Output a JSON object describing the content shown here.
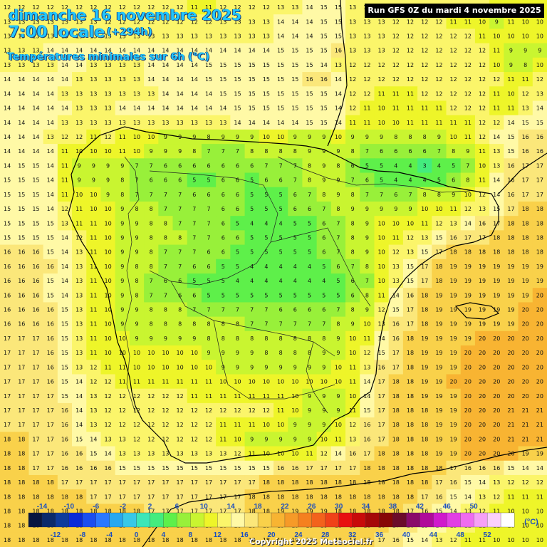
{
  "header": {
    "date_line": "dimanche 16 novembre 2025",
    "time_line": "7:00 locale",
    "offset": "(+294h)",
    "subtitle": "Températures minimales sur 6h (°C)"
  },
  "run_info": "Run GFS 0Z du mardi 4 novembre 2025",
  "copyright": "Copyright 2025 Meteociel.fr",
  "legend": {
    "unit_label": "(°C)",
    "values_top": [
      -14,
      -10,
      -6,
      -2,
      2,
      6,
      10,
      14,
      18,
      22,
      26,
      30,
      34,
      38,
      42,
      46,
      50
    ],
    "values_bottom": [
      -12,
      -8,
      -4,
      0,
      4,
      8,
      12,
      16,
      20,
      24,
      28,
      32,
      36,
      40,
      44,
      48,
      52
    ],
    "colors": [
      "#061540",
      "#0a2a6b",
      "#0d3b9c",
      "#0a2ad8",
      "#1a4ef0",
      "#2a78ff",
      "#27a8f0",
      "#38c8e8",
      "#3de6b8",
      "#43ec7e",
      "#5ef04a",
      "#98f03a",
      "#c9f530",
      "#eef529",
      "#fbf56a",
      "#fff9a6",
      "#fbe77a",
      "#f9d14a",
      "#f8b432",
      "#f69a28",
      "#f5801f",
      "#f3621c",
      "#f04218",
      "#e81010",
      "#c80a0a",
      "#a50808",
      "#870606",
      "#6b0b2a",
      "#8a0a6a",
      "#b00a9a",
      "#d01acc",
      "#e23ee4",
      "#ef6cf0",
      "#f6a0f6",
      "#fbd0fb",
      "#ffffff"
    ]
  },
  "temperature_grid": [
    [
      12,
      12,
      12,
      12,
      12,
      12,
      12,
      12,
      12,
      12,
      12,
      12,
      12,
      11,
      11,
      12,
      12,
      12,
      12,
      13,
      13,
      14,
      15,
      15,
      13,
      13,
      13,
      12,
      13,
      13,
      13,
      12,
      12,
      12,
      11,
      11,
      11,
      11
    ],
    [
      13,
      13,
      13,
      13,
      13,
      13,
      13,
      12,
      12,
      12,
      12,
      12,
      12,
      12,
      12,
      13,
      13,
      13,
      13,
      14,
      14,
      14,
      15,
      15,
      13,
      13,
      13,
      12,
      12,
      12,
      12,
      11,
      11,
      10,
      9,
      11,
      10,
      10
    ],
    [
      13,
      13,
      13,
      13,
      13,
      13,
      13,
      13,
      13,
      13,
      13,
      13,
      13,
      13,
      13,
      13,
      13,
      13,
      13,
      14,
      14,
      14,
      15,
      15,
      13,
      13,
      13,
      12,
      12,
      12,
      12,
      12,
      12,
      11,
      10,
      10,
      10,
      10
    ],
    [
      13,
      13,
      13,
      14,
      14,
      14,
      14,
      14,
      14,
      14,
      14,
      14,
      14,
      14,
      14,
      14,
      14,
      14,
      14,
      15,
      15,
      15,
      15,
      16,
      13,
      13,
      13,
      12,
      12,
      12,
      12,
      12,
      12,
      12,
      11,
      9,
      9,
      9
    ],
    [
      13,
      13,
      13,
      13,
      14,
      14,
      13,
      13,
      13,
      13,
      14,
      14,
      14,
      14,
      15,
      15,
      15,
      15,
      15,
      15,
      15,
      15,
      14,
      13,
      12,
      12,
      12,
      12,
      12,
      12,
      12,
      12,
      12,
      12,
      10,
      9,
      8,
      10
    ],
    [
      14,
      14,
      14,
      14,
      14,
      13,
      13,
      13,
      13,
      13,
      14,
      14,
      14,
      14,
      15,
      15,
      15,
      15,
      15,
      15,
      15,
      16,
      16,
      14,
      12,
      12,
      12,
      12,
      12,
      12,
      12,
      12,
      12,
      12,
      12,
      11,
      11,
      12
    ],
    [
      14,
      14,
      14,
      14,
      13,
      13,
      13,
      13,
      13,
      13,
      13,
      14,
      14,
      14,
      14,
      15,
      15,
      15,
      15,
      15,
      15,
      15,
      15,
      14,
      12,
      12,
      11,
      11,
      11,
      12,
      12,
      12,
      12,
      12,
      11,
      10,
      12,
      13
    ],
    [
      14,
      14,
      14,
      14,
      14,
      13,
      13,
      13,
      14,
      14,
      14,
      14,
      14,
      14,
      14,
      14,
      15,
      15,
      15,
      15,
      15,
      15,
      15,
      14,
      12,
      11,
      10,
      11,
      11,
      11,
      11,
      12,
      12,
      12,
      11,
      11,
      13,
      14
    ],
    [
      14,
      14,
      14,
      14,
      13,
      13,
      13,
      13,
      13,
      13,
      13,
      13,
      13,
      13,
      13,
      13,
      14,
      14,
      14,
      14,
      14,
      15,
      15,
      14,
      11,
      11,
      10,
      10,
      11,
      11,
      11,
      11,
      11,
      12,
      12,
      14,
      15,
      15
    ],
    [
      14,
      14,
      14,
      13,
      12,
      12,
      11,
      12,
      11,
      10,
      10,
      9,
      9,
      9,
      8,
      9,
      9,
      9,
      10,
      10,
      9,
      9,
      9,
      10,
      9,
      9,
      9,
      8,
      8,
      8,
      9,
      10,
      11,
      12,
      14,
      15,
      16,
      16
    ],
    [
      14,
      14,
      14,
      14,
      11,
      10,
      10,
      10,
      11,
      10,
      9,
      9,
      9,
      8,
      7,
      7,
      7,
      8,
      8,
      8,
      8,
      9,
      9,
      9,
      8,
      7,
      6,
      6,
      6,
      6,
      7,
      8,
      9,
      11,
      13,
      15,
      16,
      16
    ],
    [
      14,
      15,
      15,
      14,
      11,
      9,
      9,
      9,
      9,
      7,
      7,
      6,
      6,
      6,
      6,
      6,
      6,
      6,
      7,
      7,
      7,
      8,
      9,
      8,
      6,
      5,
      5,
      4,
      4,
      3,
      4,
      5,
      7,
      10,
      13,
      16,
      17,
      17
    ],
    [
      15,
      15,
      15,
      14,
      11,
      9,
      9,
      9,
      8,
      7,
      6,
      6,
      6,
      5,
      5,
      6,
      6,
      5,
      6,
      6,
      7,
      8,
      9,
      9,
      7,
      6,
      5,
      4,
      4,
      4,
      5,
      6,
      8,
      11,
      14,
      16,
      17,
      17
    ],
    [
      15,
      15,
      15,
      14,
      11,
      10,
      10,
      9,
      8,
      7,
      7,
      7,
      7,
      6,
      6,
      6,
      6,
      5,
      5,
      5,
      6,
      7,
      8,
      9,
      8,
      7,
      7,
      6,
      7,
      8,
      8,
      9,
      10,
      12,
      14,
      16,
      17,
      17
    ],
    [
      15,
      15,
      15,
      14,
      12,
      11,
      10,
      10,
      9,
      8,
      8,
      7,
      7,
      7,
      7,
      6,
      6,
      5,
      5,
      5,
      6,
      6,
      7,
      8,
      9,
      9,
      9,
      9,
      9,
      10,
      10,
      11,
      12,
      13,
      15,
      17,
      18,
      18
    ],
    [
      15,
      15,
      15,
      15,
      13,
      11,
      11,
      10,
      9,
      9,
      8,
      8,
      7,
      7,
      7,
      6,
      5,
      4,
      4,
      4,
      5,
      5,
      6,
      7,
      8,
      9,
      10,
      10,
      10,
      11,
      12,
      13,
      14,
      16,
      17,
      18,
      18,
      18
    ],
    [
      15,
      15,
      15,
      15,
      14,
      12,
      11,
      10,
      9,
      9,
      8,
      8,
      8,
      7,
      7,
      6,
      6,
      5,
      5,
      5,
      5,
      5,
      6,
      7,
      8,
      9,
      10,
      11,
      12,
      13,
      15,
      16,
      17,
      17,
      18,
      18,
      18,
      18
    ],
    [
      16,
      16,
      16,
      15,
      14,
      13,
      11,
      10,
      9,
      9,
      8,
      7,
      7,
      7,
      6,
      6,
      5,
      5,
      5,
      5,
      5,
      5,
      6,
      7,
      8,
      9,
      10,
      12,
      13,
      15,
      17,
      18,
      18,
      18,
      18,
      18,
      18,
      18
    ],
    [
      16,
      16,
      16,
      16,
      14,
      13,
      11,
      10,
      9,
      8,
      8,
      7,
      7,
      6,
      6,
      5,
      5,
      4,
      4,
      4,
      4,
      4,
      5,
      6,
      7,
      8,
      10,
      13,
      15,
      17,
      18,
      19,
      19,
      19,
      19,
      19,
      19,
      19
    ],
    [
      16,
      16,
      16,
      15,
      14,
      13,
      11,
      10,
      9,
      8,
      7,
      6,
      6,
      5,
      5,
      5,
      4,
      4,
      4,
      4,
      4,
      4,
      4,
      5,
      6,
      7,
      10,
      13,
      15,
      17,
      18,
      19,
      19,
      19,
      19,
      19,
      19,
      19
    ],
    [
      16,
      16,
      16,
      15,
      14,
      13,
      11,
      10,
      9,
      8,
      7,
      7,
      6,
      6,
      5,
      5,
      5,
      5,
      5,
      5,
      5,
      5,
      5,
      5,
      6,
      8,
      11,
      14,
      16,
      18,
      19,
      19,
      19,
      19,
      19,
      19,
      19,
      20
    ],
    [
      16,
      16,
      16,
      16,
      15,
      13,
      11,
      10,
      9,
      9,
      8,
      8,
      8,
      7,
      7,
      7,
      7,
      7,
      7,
      6,
      6,
      6,
      6,
      7,
      8,
      9,
      12,
      15,
      17,
      18,
      19,
      19,
      19,
      19,
      19,
      19,
      20,
      20
    ],
    [
      16,
      16,
      16,
      16,
      15,
      13,
      11,
      10,
      9,
      9,
      8,
      8,
      8,
      8,
      8,
      8,
      8,
      7,
      7,
      7,
      7,
      7,
      7,
      8,
      9,
      10,
      13,
      16,
      17,
      18,
      19,
      19,
      19,
      19,
      19,
      19,
      20,
      20
    ],
    [
      17,
      17,
      17,
      16,
      15,
      13,
      11,
      10,
      10,
      9,
      9,
      9,
      9,
      9,
      8,
      8,
      8,
      8,
      8,
      8,
      8,
      8,
      8,
      9,
      10,
      11,
      14,
      16,
      18,
      19,
      19,
      19,
      19,
      20,
      20,
      20,
      20,
      20
    ],
    [
      17,
      17,
      17,
      16,
      15,
      13,
      11,
      10,
      10,
      10,
      10,
      10,
      10,
      10,
      9,
      9,
      9,
      9,
      8,
      8,
      8,
      8,
      9,
      9,
      10,
      12,
      15,
      17,
      18,
      19,
      19,
      19,
      20,
      20,
      20,
      20,
      20,
      20
    ],
    [
      17,
      17,
      17,
      16,
      15,
      13,
      12,
      11,
      11,
      10,
      10,
      10,
      10,
      10,
      10,
      9,
      9,
      9,
      9,
      9,
      9,
      9,
      9,
      10,
      11,
      13,
      16,
      17,
      18,
      19,
      19,
      19,
      20,
      20,
      20,
      20,
      20,
      20
    ],
    [
      17,
      17,
      17,
      16,
      15,
      14,
      12,
      12,
      11,
      11,
      11,
      11,
      11,
      11,
      11,
      10,
      10,
      10,
      10,
      10,
      10,
      10,
      10,
      10,
      11,
      14,
      17,
      18,
      18,
      19,
      19,
      20,
      20,
      20,
      20,
      20,
      20,
      20
    ],
    [
      17,
      17,
      17,
      17,
      15,
      14,
      13,
      12,
      12,
      12,
      12,
      12,
      12,
      11,
      11,
      11,
      11,
      11,
      11,
      11,
      10,
      9,
      9,
      9,
      10,
      14,
      17,
      18,
      18,
      19,
      19,
      19,
      20,
      20,
      20,
      20,
      20,
      20
    ],
    [
      17,
      17,
      17,
      17,
      16,
      14,
      13,
      12,
      12,
      12,
      12,
      12,
      12,
      12,
      12,
      12,
      12,
      12,
      12,
      11,
      10,
      9,
      9,
      9,
      11,
      15,
      17,
      18,
      18,
      18,
      19,
      19,
      20,
      20,
      20,
      21,
      21,
      21
    ],
    [
      17,
      17,
      17,
      17,
      16,
      14,
      13,
      12,
      12,
      12,
      12,
      12,
      12,
      12,
      12,
      11,
      11,
      11,
      10,
      10,
      9,
      9,
      9,
      10,
      12,
      16,
      17,
      18,
      18,
      18,
      19,
      19,
      20,
      20,
      20,
      21,
      21,
      21
    ],
    [
      18,
      18,
      17,
      17,
      16,
      15,
      14,
      13,
      13,
      12,
      12,
      12,
      12,
      12,
      12,
      11,
      10,
      9,
      9,
      9,
      9,
      9,
      10,
      11,
      13,
      16,
      17,
      18,
      18,
      18,
      19,
      19,
      20,
      20,
      20,
      21,
      21,
      21
    ],
    [
      18,
      18,
      17,
      17,
      16,
      16,
      15,
      14,
      13,
      13,
      13,
      13,
      13,
      13,
      13,
      13,
      12,
      11,
      10,
      10,
      10,
      11,
      12,
      14,
      16,
      17,
      18,
      18,
      18,
      18,
      19,
      19,
      20,
      20,
      20,
      20,
      19,
      19
    ],
    [
      18,
      18,
      17,
      17,
      16,
      16,
      16,
      16,
      15,
      15,
      15,
      15,
      15,
      15,
      15,
      15,
      15,
      15,
      15,
      16,
      16,
      17,
      17,
      17,
      17,
      18,
      18,
      18,
      18,
      18,
      18,
      17,
      16,
      16,
      16,
      15,
      14,
      14
    ],
    [
      18,
      18,
      18,
      18,
      17,
      17,
      17,
      17,
      17,
      17,
      17,
      17,
      17,
      17,
      17,
      17,
      17,
      17,
      18,
      18,
      18,
      18,
      18,
      18,
      18,
      18,
      18,
      18,
      18,
      18,
      17,
      16,
      15,
      14,
      13,
      12,
      12,
      12
    ],
    [
      18,
      18,
      18,
      18,
      18,
      18,
      17,
      17,
      17,
      17,
      17,
      17,
      17,
      17,
      17,
      17,
      17,
      18,
      18,
      18,
      18,
      18,
      18,
      18,
      18,
      18,
      18,
      18,
      18,
      17,
      16,
      15,
      14,
      13,
      12,
      11,
      11,
      11
    ],
    [
      18,
      18,
      18,
      18,
      18,
      18,
      18,
      18,
      18,
      18,
      17,
      17,
      17,
      17,
      17,
      17,
      17,
      18,
      18,
      19,
      19,
      19,
      19,
      18,
      18,
      18,
      18,
      18,
      17,
      16,
      15,
      14,
      13,
      12,
      11,
      10,
      10,
      10
    ],
    [
      18,
      18,
      18,
      18,
      18,
      18,
      18,
      18,
      18,
      18,
      18,
      18,
      18,
      18,
      18,
      18,
      18,
      18,
      19,
      19,
      19,
      19,
      19,
      18,
      18,
      18,
      18,
      17,
      16,
      15,
      14,
      13,
      12,
      11,
      11,
      10,
      10,
      10
    ],
    [
      18,
      18,
      18,
      18,
      18,
      18,
      18,
      18,
      18,
      18,
      18,
      18,
      18,
      18,
      18,
      18,
      18,
      18,
      18,
      19,
      19,
      19,
      19,
      18,
      18,
      18,
      17,
      16,
      15,
      14,
      13,
      12,
      11,
      11,
      10,
      10,
      10,
      10
    ]
  ],
  "map_features": [
    "coastline",
    "border",
    "regional-boundaries"
  ]
}
